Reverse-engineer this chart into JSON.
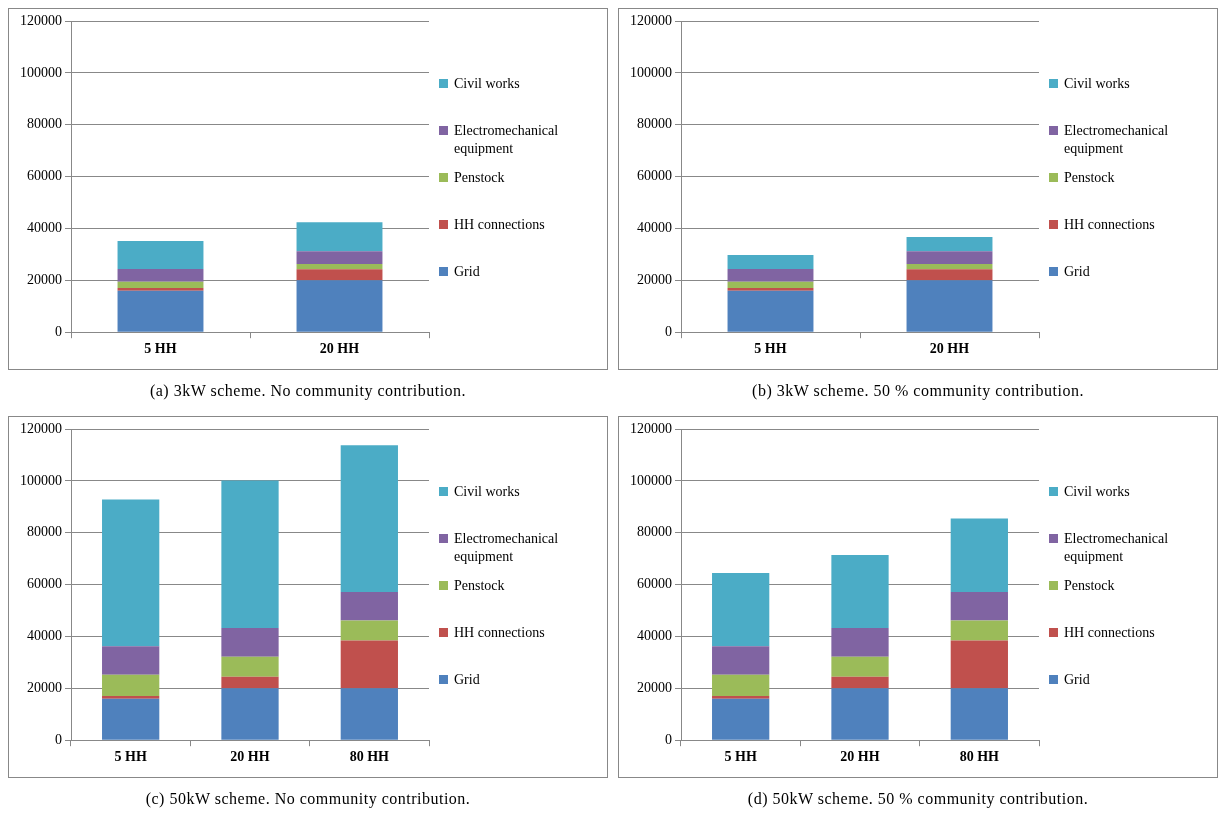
{
  "chart_data": [
    {
      "type": "bar",
      "categories": [
        "5 HH",
        "20 HH"
      ],
      "stacked": true,
      "ylim": [
        0,
        120000
      ],
      "yticks": [
        0,
        20000,
        40000,
        60000,
        80000,
        100000,
        120000
      ],
      "grid": "y",
      "legend": "right",
      "annotations": [
        "(a) 3kW scheme. No community contribution."
      ],
      "series": [
        {
          "name": "Grid",
          "color": "#4f81bd",
          "values": [
            16000,
            20000
          ]
        },
        {
          "name": "HH connections",
          "color": "#c0504d",
          "values": [
            1000,
            4300
          ]
        },
        {
          "name": "Penstock",
          "color": "#9bbb59",
          "values": [
            2500,
            2000
          ]
        },
        {
          "name": "Electromechanical equipment",
          "color": "#8064a2",
          "values": [
            4900,
            4900
          ]
        },
        {
          "name": "Civil works",
          "color": "#4bacc6",
          "values": [
            10800,
            11200
          ]
        }
      ]
    },
    {
      "type": "bar",
      "categories": [
        "5 HH",
        "20 HH"
      ],
      "stacked": true,
      "ylim": [
        0,
        120000
      ],
      "yticks": [
        0,
        20000,
        40000,
        60000,
        80000,
        100000,
        120000
      ],
      "grid": "y",
      "legend": "right",
      "annotations": [
        "(b) 3kW scheme. 50 % community contribution."
      ],
      "series": [
        {
          "name": "Grid",
          "color": "#4f81bd",
          "values": [
            16000,
            20000
          ]
        },
        {
          "name": "HH connections",
          "color": "#c0504d",
          "values": [
            1000,
            4300
          ]
        },
        {
          "name": "Penstock",
          "color": "#9bbb59",
          "values": [
            2500,
            2000
          ]
        },
        {
          "name": "Electromechanical equipment",
          "color": "#8064a2",
          "values": [
            4900,
            4900
          ]
        },
        {
          "name": "Civil works",
          "color": "#4bacc6",
          "values": [
            5400,
            5500
          ]
        }
      ]
    },
    {
      "type": "bar",
      "categories": [
        "5 HH",
        "20 HH",
        "80 HH"
      ],
      "stacked": true,
      "ylim": [
        0,
        120000
      ],
      "yticks": [
        0,
        20000,
        40000,
        60000,
        80000,
        100000,
        120000
      ],
      "grid": "y",
      "legend": "right",
      "annotations": [
        "(c) 50kW scheme. No community contribution."
      ],
      "series": [
        {
          "name": "Grid",
          "color": "#4f81bd",
          "values": [
            16000,
            20000,
            20000
          ]
        },
        {
          "name": "HH connections",
          "color": "#c0504d",
          "values": [
            1000,
            4500,
            18400
          ]
        },
        {
          "name": "Penstock",
          "color": "#9bbb59",
          "values": [
            8200,
            7700,
            7800
          ]
        },
        {
          "name": "Electromechanical equipment",
          "color": "#8064a2",
          "values": [
            11000,
            11100,
            10900
          ]
        },
        {
          "name": "Civil works",
          "color": "#4bacc6",
          "values": [
            56600,
            56800,
            56600
          ]
        }
      ]
    },
    {
      "type": "bar",
      "categories": [
        "5 HH",
        "20 HH",
        "80 HH"
      ],
      "stacked": true,
      "ylim": [
        0,
        120000
      ],
      "yticks": [
        0,
        20000,
        40000,
        60000,
        80000,
        100000,
        120000
      ],
      "grid": "y",
      "legend": "right",
      "annotations": [
        "(d) 50kW scheme. 50 % community contribution."
      ],
      "series": [
        {
          "name": "Grid",
          "color": "#4f81bd",
          "values": [
            16000,
            20000,
            20000
          ]
        },
        {
          "name": "HH connections",
          "color": "#c0504d",
          "values": [
            1000,
            4500,
            18400
          ]
        },
        {
          "name": "Penstock",
          "color": "#9bbb59",
          "values": [
            8200,
            7700,
            7800
          ]
        },
        {
          "name": "Electromechanical equipment",
          "color": "#8064a2",
          "values": [
            11000,
            11100,
            10900
          ]
        },
        {
          "name": "Civil works",
          "color": "#4bacc6",
          "values": [
            28300,
            28100,
            28400
          ]
        }
      ]
    }
  ]
}
